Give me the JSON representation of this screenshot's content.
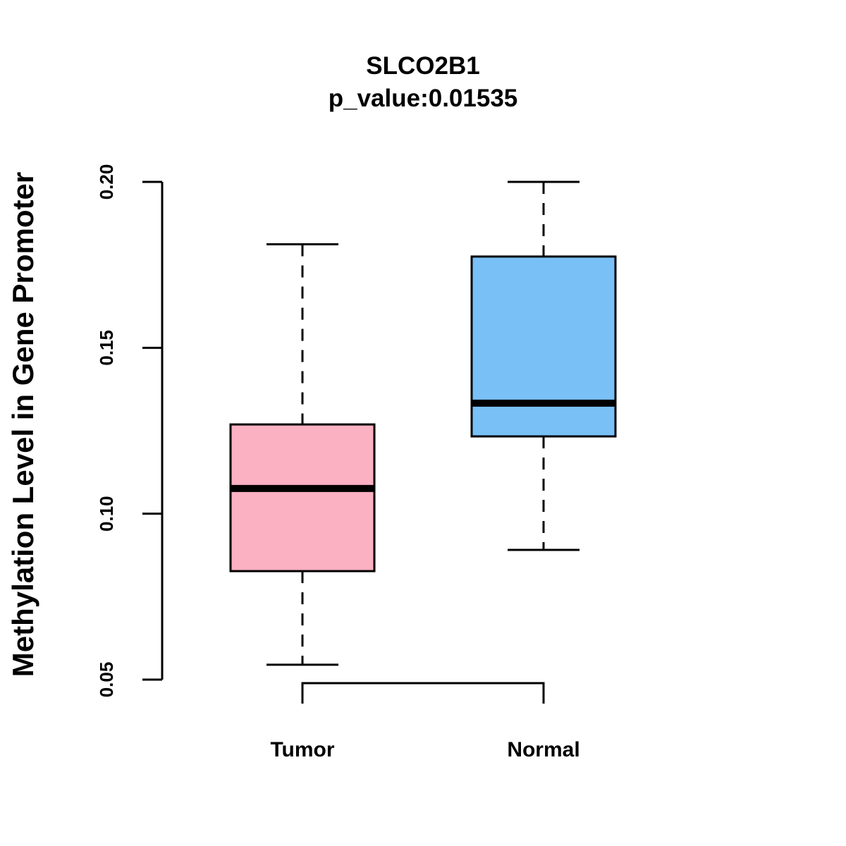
{
  "chart_data": {
    "type": "box",
    "title": "SLCO2B1",
    "subtitle": "p_value:0.01535",
    "ylabel": "Methylation Level in Gene Promoter",
    "xlabel": "",
    "ylim": [
      0.05,
      0.2
    ],
    "yticks": [
      {
        "value": 0.05,
        "label": "0.05"
      },
      {
        "value": 0.1,
        "label": "0.10"
      },
      {
        "value": 0.15,
        "label": "0.15"
      },
      {
        "value": 0.2,
        "label": "0.20"
      }
    ],
    "categories": [
      "Tumor",
      "Normal"
    ],
    "boxes": [
      {
        "name": "Tumor",
        "whisker_low": 0.0545,
        "q1": 0.0827,
        "median": 0.1076,
        "q3": 0.1269,
        "whisker_high": 0.1812,
        "fill": "#fbb1c2"
      },
      {
        "name": "Normal",
        "whisker_low": 0.0891,
        "q1": 0.1233,
        "median": 0.1333,
        "q3": 0.1775,
        "whisker_high": 0.2,
        "fill": "#79c0f7"
      }
    ],
    "comparison_bracket": [
      "Tumor",
      "Normal"
    ],
    "grid": false,
    "legend": "none"
  }
}
